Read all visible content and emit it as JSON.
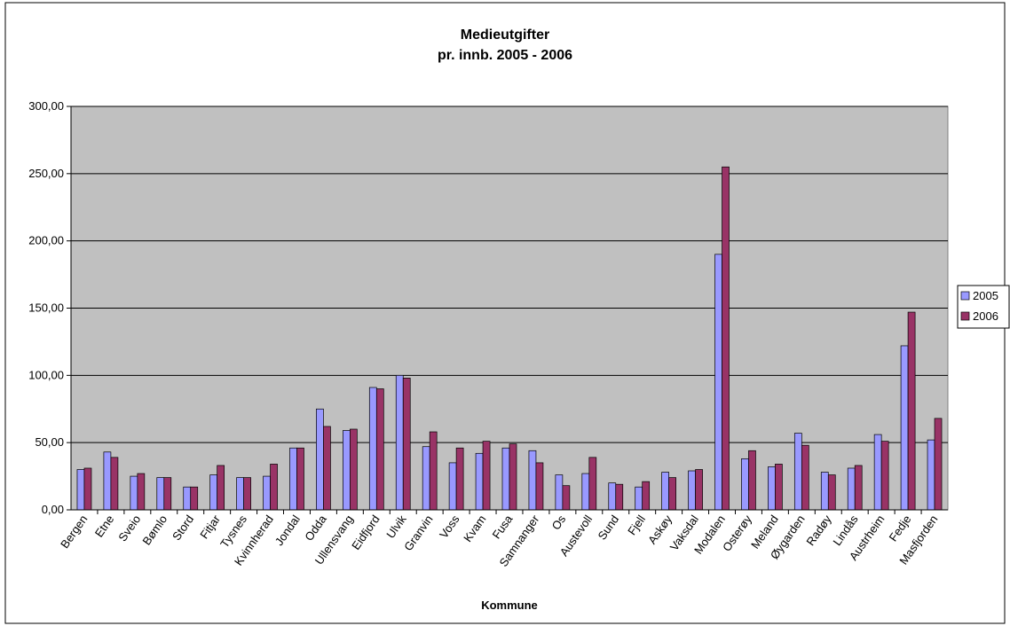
{
  "chart_data": {
    "type": "bar",
    "title": "Medieutgifter",
    "subtitle": "pr. innb. 2005 - 2006",
    "xlabel": "Kommune",
    "ylabel": "",
    "ylim": [
      0,
      300
    ],
    "yticks": [
      0,
      50,
      100,
      150,
      200,
      250,
      300
    ],
    "ytick_labels": [
      "0,00",
      "50,00",
      "100,00",
      "150,00",
      "200,00",
      "250,00",
      "300,00"
    ],
    "grid": true,
    "legend_position": "right",
    "categories": [
      "Bergen",
      "Etne",
      "Sveio",
      "Bømlo",
      "Stord",
      "Fitjar",
      "Tysnes",
      "Kvinnherad",
      "Jondal",
      "Odda",
      "Ullensvang",
      "Eidfjord",
      "Ulvik",
      "Granvin",
      "Voss",
      "Kvam",
      "Fusa",
      "Samnanger",
      "Os",
      "Austevoll",
      "Sund",
      "Fjell",
      "Askøy",
      "Vaksdal",
      "Modalen",
      "Osterøy",
      "Meland",
      "Øygarden",
      "Radøy",
      "Lindås",
      "Austrheim",
      "Fedje",
      "Masfjorden"
    ],
    "series": [
      {
        "name": "2005",
        "color": "#9999ff",
        "values": [
          30,
          43,
          25,
          24,
          17,
          26,
          24,
          25,
          46,
          75,
          59,
          91,
          100,
          47,
          35,
          42,
          46,
          44,
          26,
          27,
          20,
          17,
          28,
          29,
          190,
          38,
          32,
          57,
          28,
          31,
          56,
          122,
          52
        ]
      },
      {
        "name": "2006",
        "color": "#993366",
        "values": [
          31,
          39,
          27,
          24,
          17,
          33,
          24,
          34,
          46,
          62,
          60,
          90,
          98,
          58,
          46,
          51,
          49,
          35,
          18,
          39,
          19,
          21,
          24,
          30,
          255,
          44,
          34,
          48,
          26,
          33,
          51,
          147,
          68
        ]
      }
    ]
  }
}
